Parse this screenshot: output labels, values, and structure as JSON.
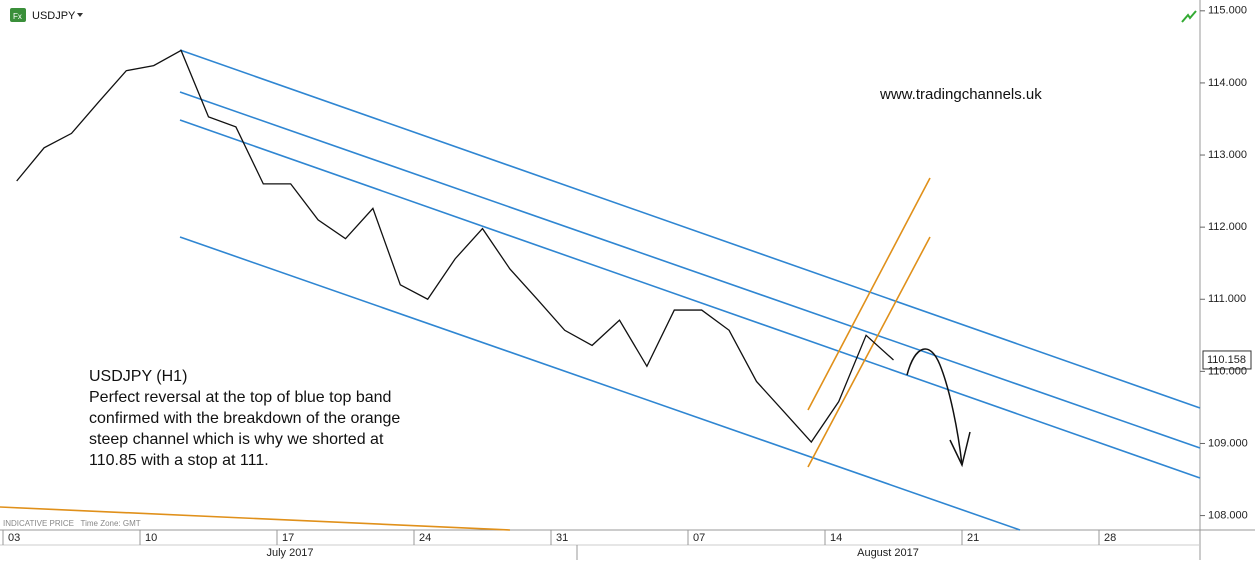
{
  "chart_data": {
    "type": "line",
    "symbol": "USDJPY",
    "website": "www.tradingchannels.uk",
    "footer": "INDICATIVE PRICE   Time Zone: GMT",
    "annotation": [
      "USDJPY (H1)",
      "Perfect reversal at the top of blue top band",
      "confirmed with the breakdown of the orange",
      "steep channel which is why we shorted at",
      "110.85 with a stop at 111."
    ],
    "categories": [
      "03",
      null,
      null,
      null,
      null,
      "10",
      null,
      null,
      null,
      null,
      "17",
      null,
      null,
      null,
      null,
      "24",
      null,
      null,
      null,
      null,
      "31",
      null,
      null,
      null,
      null,
      "07",
      null,
      null,
      null,
      null,
      "14",
      null,
      null,
      null,
      null,
      "21",
      null,
      null,
      null,
      null,
      "28",
      null,
      null,
      null
    ],
    "month_labels": [
      "July 2017",
      "August 2017"
    ],
    "series": [
      {
        "name": "USDJPY",
        "color": "#111111",
        "values": [
          112.64,
          113.1,
          113.3,
          113.74,
          114.17,
          114.24,
          114.45,
          113.53,
          113.39,
          112.6,
          112.6,
          112.1,
          111.84,
          112.26,
          111.2,
          111.0,
          111.56,
          111.98,
          111.42,
          111.0,
          110.57,
          110.36,
          110.71,
          110.07,
          110.85,
          110.85,
          110.57,
          109.86,
          109.44,
          109.02,
          109.58,
          110.5,
          110.158,
          null,
          null,
          null,
          null,
          null,
          null,
          null,
          null,
          null,
          null,
          null
        ]
      }
    ],
    "current_price": 110.158,
    "ylim": [
      107.8,
      115.15
    ],
    "yticks": [
      {
        "value": 108,
        "label": "108.000"
      },
      {
        "value": 109,
        "label": "109.000"
      },
      {
        "value": 110,
        "label": "110.000"
      },
      {
        "value": 111,
        "label": "111.000"
      },
      {
        "value": 112,
        "label": "112.000"
      },
      {
        "value": 113,
        "label": "113.000"
      },
      {
        "value": 114,
        "label": "114.000"
      },
      {
        "value": 115,
        "label": "115.000"
      }
    ]
  }
}
